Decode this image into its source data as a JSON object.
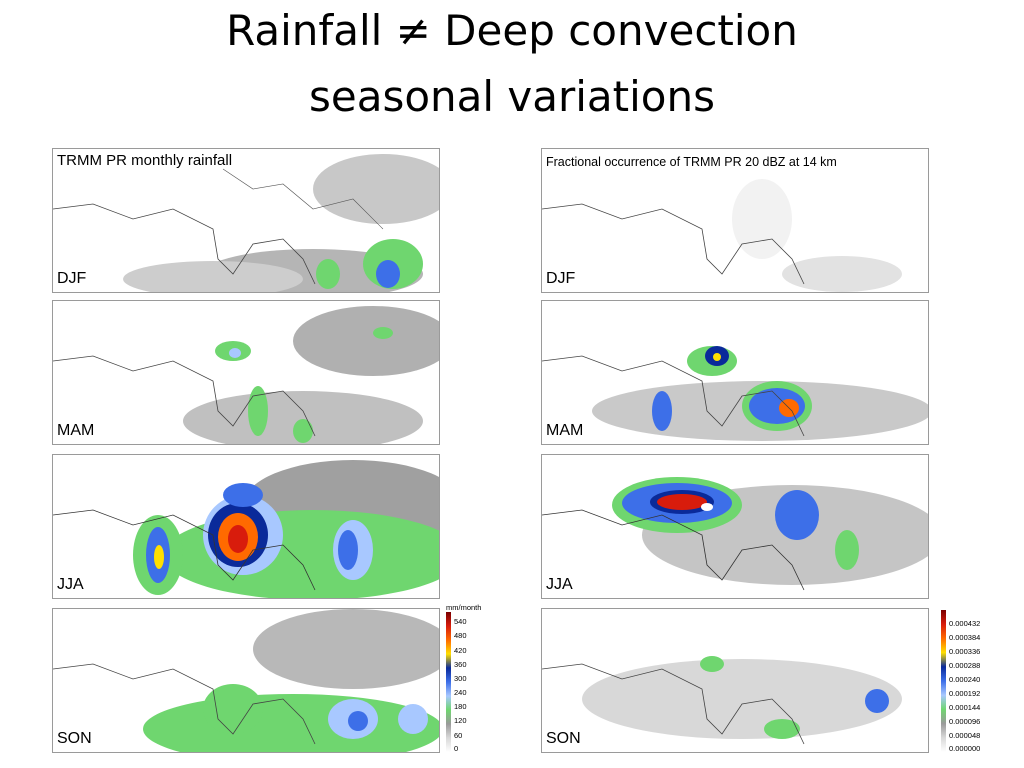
{
  "slide": {
    "title_line1": "Rainfall ≠ Deep convection",
    "title_line2": "seasonal variations"
  },
  "left_column": {
    "title": "TRMM PR monthly rainfall",
    "seasons": [
      "DJF",
      "MAM",
      "JJA",
      "SON"
    ],
    "colorbar": {
      "unit": "mm/month",
      "ticks": [
        "540",
        "480",
        "420",
        "360",
        "300",
        "240",
        "180",
        "120",
        "60",
        "0"
      ]
    }
  },
  "right_column": {
    "title": "Fractional occurrence of TRMM PR 20 dBZ at 14 km",
    "seasons": [
      "DJF",
      "MAM",
      "JJA",
      "SON"
    ],
    "colorbar": {
      "ticks": [
        "0.000432",
        "0.000384",
        "0.000336",
        "0.000288",
        "0.000240",
        "0.000192",
        "0.000144",
        "0.000096",
        "0.000048",
        "0.000000"
      ]
    }
  },
  "colors": {
    "scale": [
      "#ffffff",
      "#d9d9d9",
      "#9a9a9a",
      "#6fd66f",
      "#a8c8ff",
      "#3d6fe8",
      "#0a2a9a",
      "#ffe000",
      "#ff6a00",
      "#d81c0c",
      "#7a0000"
    ]
  }
}
